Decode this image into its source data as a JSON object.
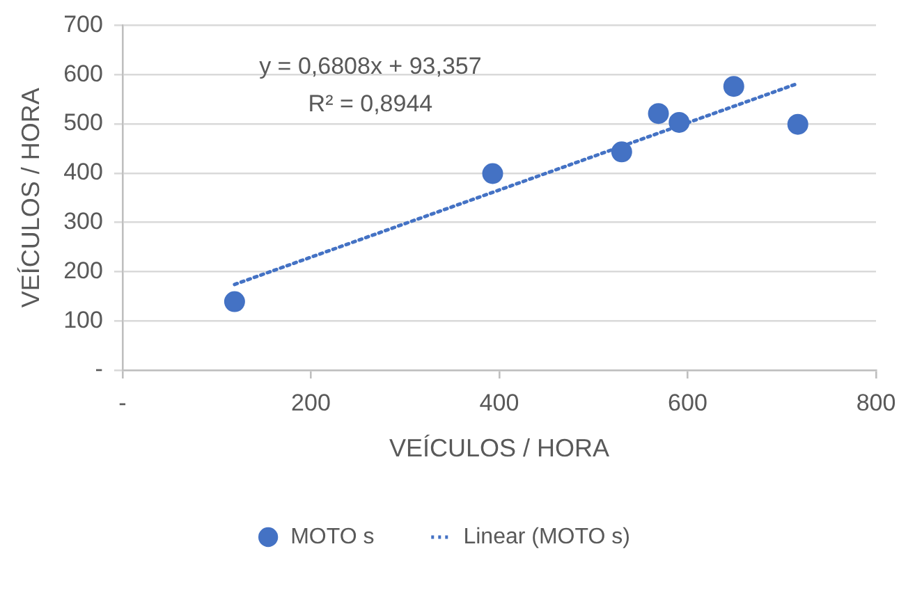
{
  "chart_data": {
    "type": "scatter",
    "xlabel": "VEÍCULOS / HORA",
    "ylabel": "VEÍCULOS / HORA",
    "series": [
      {
        "name": "MOTO s",
        "color": "#4472c4",
        "marker": "circle",
        "x": [
          119,
          393,
          530,
          569,
          591,
          649,
          717
        ],
        "values": [
          139,
          399,
          443,
          521,
          503,
          576,
          499
        ]
      },
      {
        "name": "Linear (MOTO s)",
        "type": "line",
        "color": "#4472c4",
        "line_style": "dotted",
        "marker": "none",
        "x": [
          119,
          717
        ],
        "values": [
          174,
          582
        ]
      }
    ],
    "xlim": [
      0,
      800
    ],
    "xticks": [
      {
        "value": 0,
        "label": "-"
      },
      200,
      400,
      600,
      800
    ],
    "ylim": [
      0,
      700
    ],
    "yticks": [
      {
        "value": 0,
        "label": "-"
      },
      100,
      200,
      300,
      400,
      500,
      600,
      700
    ],
    "grid": "y",
    "legend": "bottom",
    "annotations": [
      "y = 0,6808x + 93,357",
      "R² = 0,8944"
    ]
  }
}
